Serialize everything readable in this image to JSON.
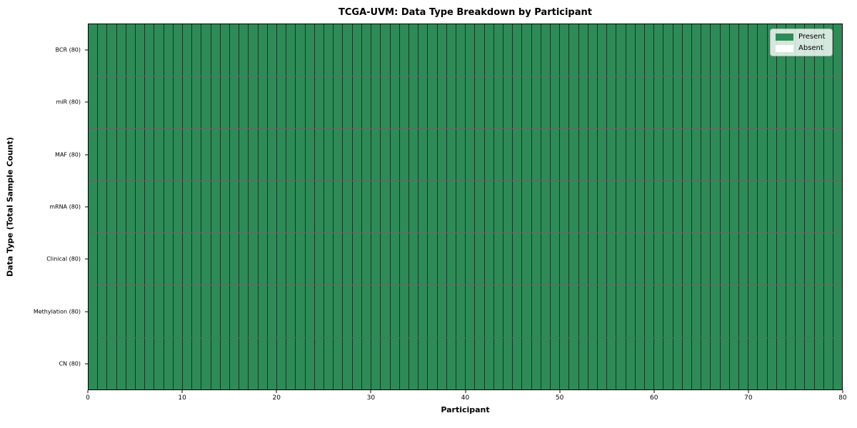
{
  "chart_data": {
    "type": "heatmap",
    "title": "TCGA-UVM: Data Type Breakdown by Participant",
    "xlabel": "Participant",
    "ylabel": "Data Type (Total Sample Count)",
    "xlim": [
      0,
      80
    ],
    "x_ticks": [
      0,
      10,
      20,
      30,
      40,
      50,
      60,
      70,
      80
    ],
    "n_participants": 80,
    "rows": [
      {
        "label": "BCR (80)",
        "data_type": "BCR",
        "total_samples": 80,
        "present": 80,
        "absent": 0
      },
      {
        "label": "miR (80)",
        "data_type": "miR",
        "total_samples": 80,
        "present": 80,
        "absent": 0
      },
      {
        "label": "MAF (80)",
        "data_type": "MAF",
        "total_samples": 80,
        "present": 80,
        "absent": 0
      },
      {
        "label": "mRNA (80)",
        "data_type": "mRNA",
        "total_samples": 80,
        "present": 80,
        "absent": 0
      },
      {
        "label": "Clinical (80)",
        "data_type": "Clinical",
        "total_samples": 80,
        "present": 80,
        "absent": 0
      },
      {
        "label": "Methylation (80)",
        "data_type": "Methylation",
        "total_samples": 80,
        "present": 80,
        "absent": 0
      },
      {
        "label": "CN (80)",
        "data_type": "CN",
        "total_samples": 80,
        "present": 80,
        "absent": 0
      }
    ],
    "legend": {
      "position": "upper right",
      "entries": [
        {
          "label": "Present",
          "color": "#2e8b57"
        },
        {
          "label": "Absent",
          "color": "#ffffff"
        }
      ]
    },
    "colors": {
      "present": "#2e8b57",
      "absent": "#ffffff",
      "cell_edge": "rgba(0,0,0,0.60)",
      "spine": "#000000",
      "background": "#ffffff"
    },
    "grid": "per-cell borders"
  }
}
